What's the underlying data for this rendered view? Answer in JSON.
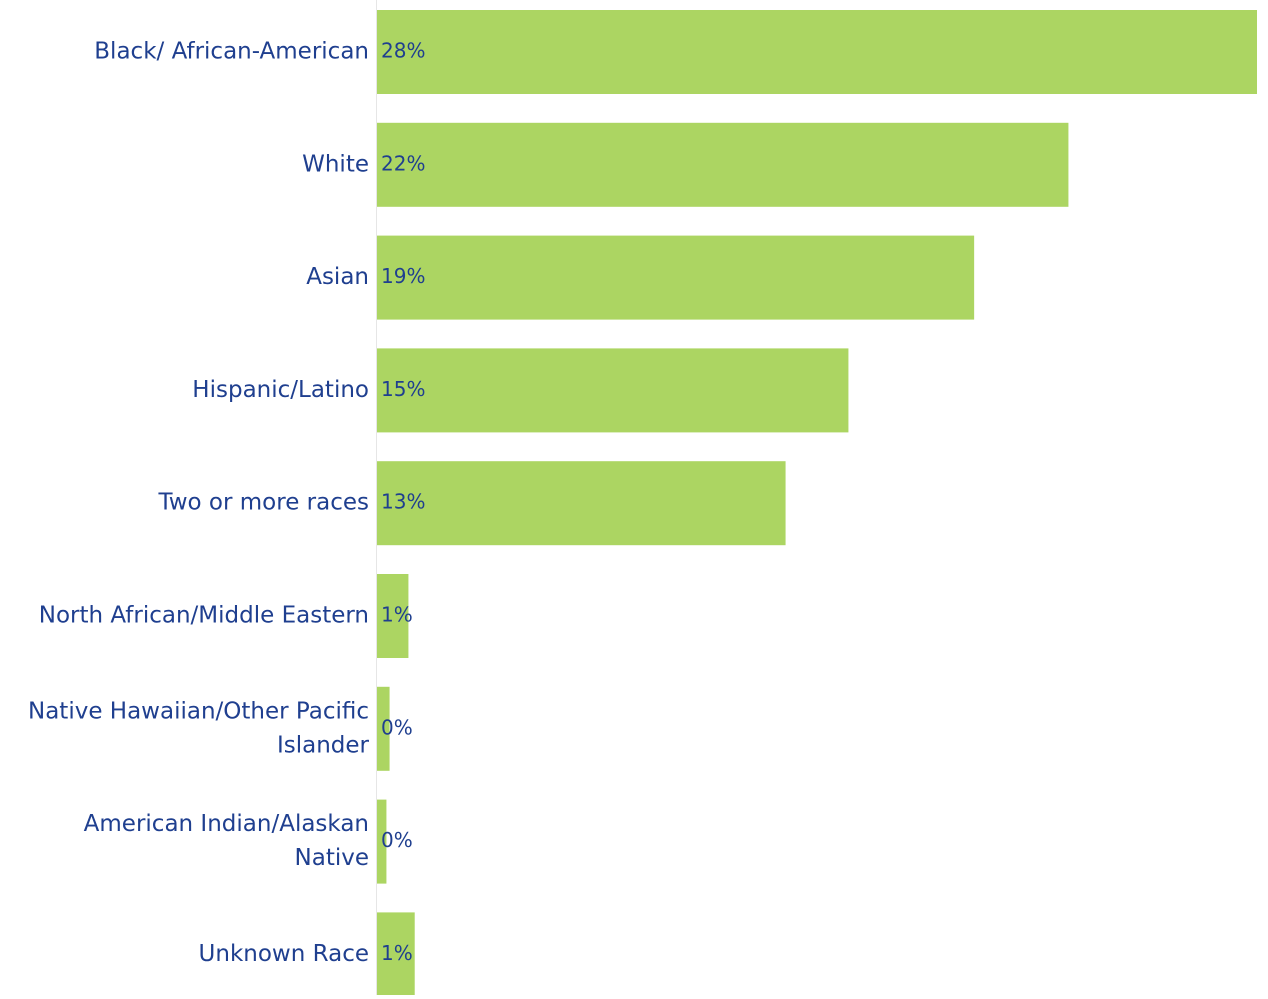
{
  "chart_data": {
    "type": "bar",
    "orientation": "horizontal",
    "categories": [
      [
        "Black/ African-American"
      ],
      [
        "White"
      ],
      [
        "Asian"
      ],
      [
        "Hispanic/Latino"
      ],
      [
        "Two or more races"
      ],
      [
        "North African/Middle Eastern"
      ],
      [
        "Native Hawaiian/Other Pacific",
        "Islander"
      ],
      [
        "American Indian/Alaskan",
        "Native"
      ],
      [
        "Unknown Race"
      ]
    ],
    "values": [
      28,
      22,
      19,
      15,
      13,
      1,
      0.4,
      0.3,
      1.2
    ],
    "data_labels": [
      "28%",
      "22%",
      "19%",
      "15%",
      "13%",
      "1%",
      "0%",
      "0%",
      "1%"
    ],
    "unit": "%",
    "title": "",
    "xlabel": "",
    "ylabel": "",
    "xlim": [
      0,
      28
    ],
    "grid": false,
    "legend": "none",
    "colors": {
      "bar": "#acd562",
      "text": "#1f3f8f",
      "axis_line": "#e6e6e6"
    }
  }
}
